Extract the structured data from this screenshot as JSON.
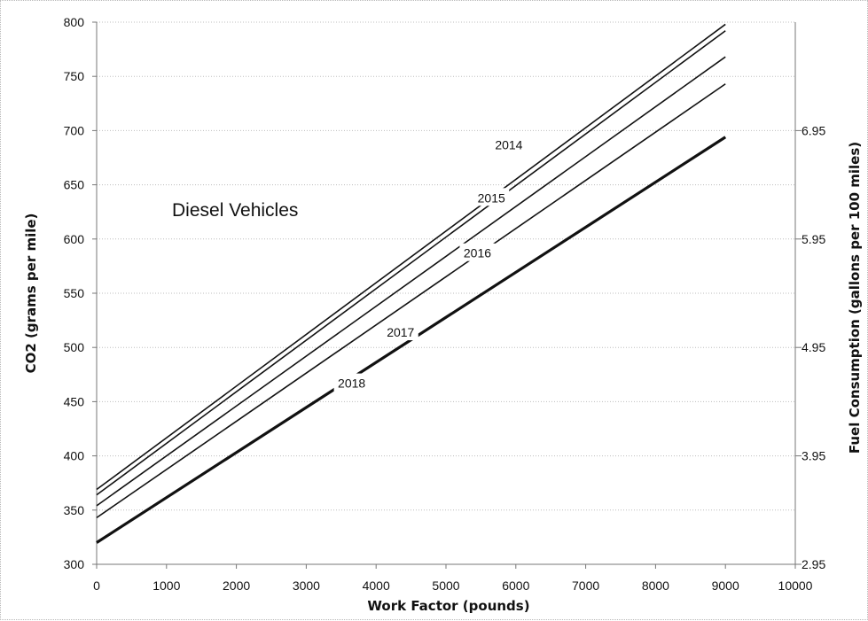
{
  "chart_data": {
    "type": "line",
    "annotation": "Diesel Vehicles",
    "xlabel": "Work Factor (pounds)",
    "ylabel": "CO2 (grams per mile)",
    "y2label": "Fuel Consumption (gallons per 100 miles)",
    "xlim": [
      0,
      10000
    ],
    "ylim": [
      300,
      800
    ],
    "y2lim": [
      2.95,
      7.95
    ],
    "x_ticks": [
      "0",
      "1000",
      "2000",
      "3000",
      "4000",
      "5000",
      "6000",
      "7000",
      "8000",
      "9000",
      "10000"
    ],
    "y_ticks": [
      "300",
      "350",
      "400",
      "450",
      "500",
      "550",
      "600",
      "650",
      "700",
      "750",
      "800"
    ],
    "y2_ticks": [
      "2.95",
      "3.95",
      "4.95",
      "5.95",
      "6.95"
    ],
    "grid": "horizontal",
    "series": [
      {
        "name": "2014",
        "x": [
          0,
          9000
        ],
        "y": [
          369,
          798
        ],
        "label_x": 5900,
        "label_y": 687,
        "line_color": "#111111",
        "line_weight": "normal"
      },
      {
        "name": "2015",
        "x": [
          0,
          9000
        ],
        "y": [
          364,
          792
        ],
        "label_x": 5650,
        "label_y": 638,
        "line_color": "#111111",
        "line_weight": "normal"
      },
      {
        "name": "2016",
        "x": [
          0,
          9000
        ],
        "y": [
          354,
          768
        ],
        "label_x": 5450,
        "label_y": 587,
        "line_color": "#111111",
        "line_weight": "normal"
      },
      {
        "name": "2017",
        "x": [
          0,
          9000
        ],
        "y": [
          343,
          743
        ],
        "label_x": 4350,
        "label_y": 514,
        "line_color": "#111111",
        "line_weight": "normal"
      },
      {
        "name": "2018",
        "x": [
          0,
          9000
        ],
        "y": [
          320,
          694
        ],
        "label_x": 3650,
        "label_y": 467,
        "line_color": "#111111",
        "line_weight": "bold"
      }
    ]
  }
}
